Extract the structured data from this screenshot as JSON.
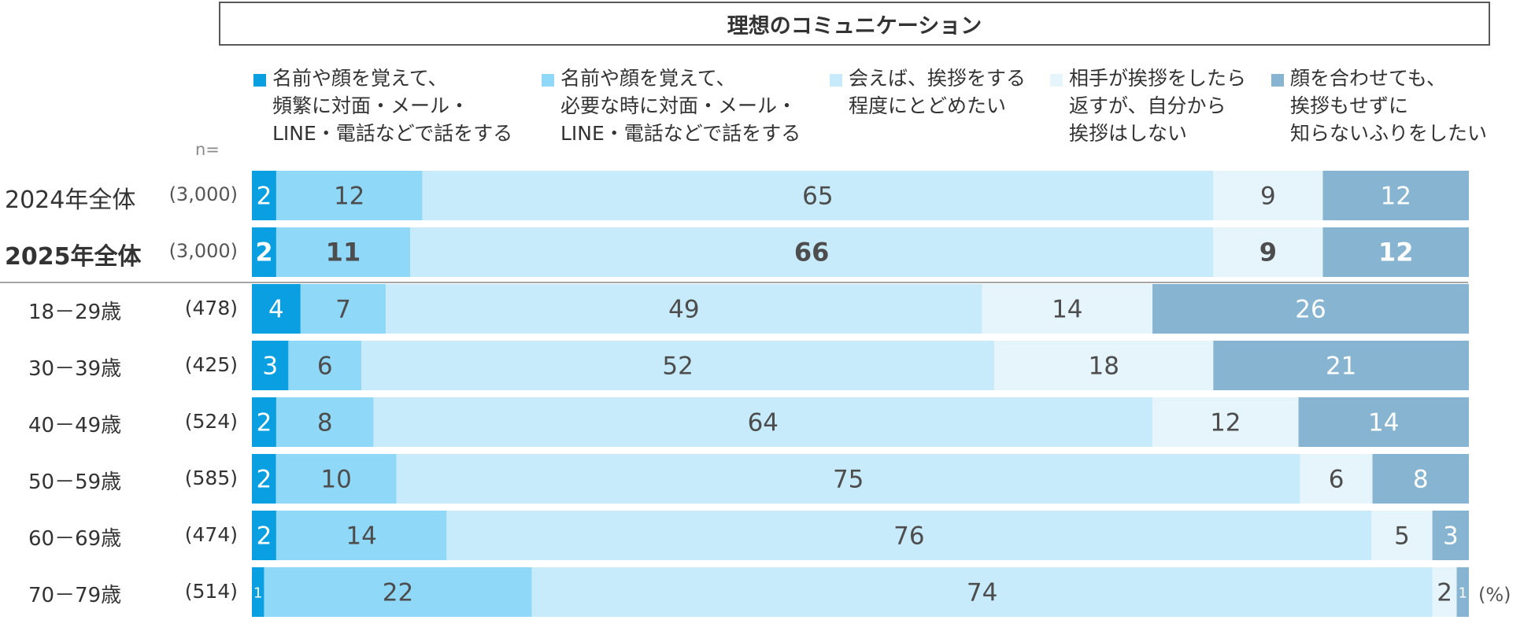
{
  "chart_data": {
    "type": "bar",
    "orientation": "horizontal-stacked-100",
    "title": "理想のコミュニケーション",
    "n_label": "n=",
    "unit_label": "(%)",
    "series": [
      {
        "name": "名前や顔を覚えて、\n頻繁に対面・メール・\nLINE・電話などで話をする",
        "color": "#0A9FE0",
        "label_color": "#ffffff"
      },
      {
        "name": "名前や顔を覚えて、\n必要な時に対面・メール・\nLINE・電話などで話をする",
        "color": "#8FD8F8",
        "label_color": "#4d4d4d"
      },
      {
        "name": "会えば、挨拶をする\n程度にとどめたい",
        "color": "#C8EBFB",
        "label_color": "#4d4d4d"
      },
      {
        "name": "相手が挨拶をしたら\n返すが、自分から\n挨拶はしない",
        "color": "#E6F5FC",
        "label_color": "#4d4d4d"
      },
      {
        "name": "顔を合わせても、\n挨拶もせずに\n知らないふりをしたい",
        "color": "#87B4D1",
        "label_color": "#ffffff"
      }
    ],
    "rows": [
      {
        "label": "2024年全体",
        "n": "(3,000)",
        "values": [
          2,
          12,
          65,
          9,
          12
        ]
      },
      {
        "label": "2025年全体",
        "n": "(3,000)",
        "values": [
          2,
          11,
          66,
          9,
          12
        ]
      },
      {
        "label": "18－29歳",
        "n": "(478)",
        "values": [
          4,
          7,
          49,
          14,
          26
        ]
      },
      {
        "label": "30－39歳",
        "n": "(425)",
        "values": [
          3,
          6,
          52,
          18,
          21
        ]
      },
      {
        "label": "40－49歳",
        "n": "(524)",
        "values": [
          2,
          8,
          64,
          12,
          14
        ]
      },
      {
        "label": "50－59歳",
        "n": "(585)",
        "values": [
          2,
          10,
          75,
          6,
          8
        ]
      },
      {
        "label": "60－69歳",
        "n": "(474)",
        "values": [
          2,
          14,
          76,
          5,
          3
        ]
      },
      {
        "label": "70－79歳",
        "n": "(514)",
        "values": [
          1,
          22,
          74,
          2,
          1
        ]
      }
    ]
  }
}
